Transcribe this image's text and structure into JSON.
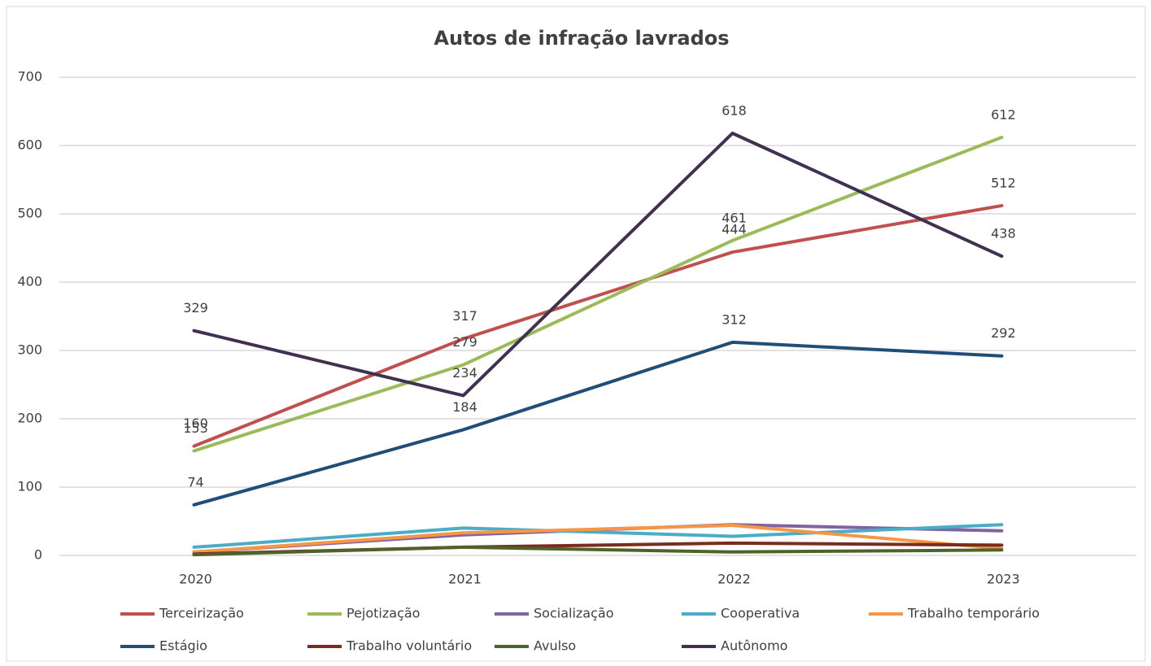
{
  "chart_data": {
    "type": "line",
    "title": "Autos de infração lavrados",
    "categories": [
      "2020",
      "2021",
      "2022",
      "2023"
    ],
    "ylim": [
      0,
      700
    ],
    "yticks": [
      0,
      100,
      200,
      300,
      400,
      500,
      600,
      700
    ],
    "grid": true,
    "legend": "bottom",
    "series": [
      {
        "name": "Terceirização",
        "color": "#c0504d",
        "values": [
          160,
          317,
          444,
          512
        ],
        "data_labels": true
      },
      {
        "name": "Pejotização",
        "color": "#9bbb59",
        "values": [
          153,
          279,
          461,
          612
        ],
        "data_labels": true
      },
      {
        "name": "Socialização",
        "color": "#8064a2",
        "values": [
          5,
          30,
          45,
          36
        ],
        "data_labels": false
      },
      {
        "name": "Cooperativa",
        "color": "#4bacc6",
        "values": [
          12,
          40,
          28,
          45
        ],
        "data_labels": false
      },
      {
        "name": "Trabalho temporário",
        "color": "#f79646",
        "values": [
          5,
          33,
          44,
          10
        ],
        "data_labels": false
      },
      {
        "name": "Estágio",
        "color": "#1f4e79",
        "values": [
          74,
          184,
          312,
          292
        ],
        "data_labels": true
      },
      {
        "name": "Trabalho voluntário",
        "color": "#7b2c1f",
        "values": [
          2,
          12,
          18,
          15
        ],
        "data_labels": false
      },
      {
        "name": "Avulso",
        "color": "#4f6228",
        "values": [
          1,
          12,
          5,
          8
        ],
        "data_labels": false
      },
      {
        "name": "Autônomo",
        "color": "#403151",
        "values": [
          329,
          234,
          618,
          438
        ],
        "data_labels": true
      }
    ]
  }
}
